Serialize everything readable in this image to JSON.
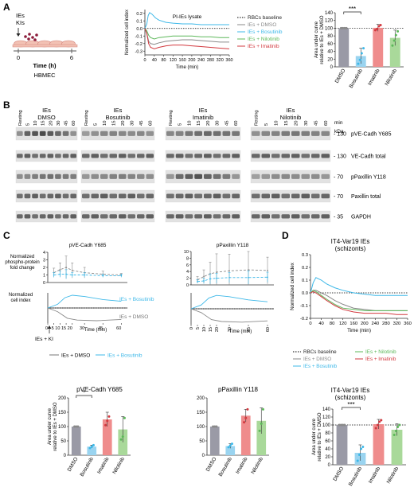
{
  "panels": {
    "A": "A",
    "B": "B",
    "C": "C",
    "D": "D"
  },
  "colors": {
    "dmso": "#8a8a8a",
    "bosutinib": "#3db8e8",
    "nilotinib": "#5db85a",
    "imatinib": "#d2393f",
    "baseline": "#000000",
    "dmso_bar": "#9a9aa6",
    "bosu_bar": "#9ad4f0",
    "imat_bar": "#ef8c8c",
    "nilo_bar": "#a9d99a",
    "cell": "#f2c1b4",
    "cell_edge": "#d5837a",
    "ie": "#8c1d3b"
  },
  "panelA": {
    "schematic": {
      "ies": "IEs",
      "kis": "KIs",
      "t0": "0",
      "t6": "6",
      "time_label": "Time (h)",
      "cell_label": "HBMEC"
    },
    "sig": "***"
  },
  "panelB": {
    "groups": [
      {
        "line1": "IEs",
        "line2": "DMSO"
      },
      {
        "line1": "IEs",
        "line2": "Bosutinib"
      },
      {
        "line1": "IEs",
        "line2": "Imatinib"
      },
      {
        "line1": "IEs",
        "line2": "Nilotinib"
      }
    ],
    "lanes": [
      "Resting",
      "5",
      "10",
      "15",
      "20",
      "30",
      "45",
      "60"
    ],
    "min_label": "min",
    "kda_label": "kDa",
    "rows": [
      {
        "kda": "130",
        "name": "pVE-Cadh Y685"
      },
      {
        "kda": "130",
        "name": "VE-Cadh total"
      },
      {
        "kda": "70",
        "name": "pPaxillin Y118"
      },
      {
        "kda": "70",
        "name": "Paxillin total"
      },
      {
        "kda": "35",
        "name": "GAPDH"
      }
    ]
  },
  "panelC": {
    "top_ylabel": [
      "Normalized",
      "phospho-protein",
      "fold change"
    ],
    "bottom_ylabel": [
      "Normalized",
      "cell index"
    ],
    "marker_label": "IEs + KI",
    "curve_bosu": "IEs + Bosutinib",
    "curve_dmso": "IEs + DMSO",
    "legend_dmso": "IEs + DMSO",
    "legend_bosu": "IEs + Bosutinib",
    "sig": "*"
  },
  "panelD": {
    "title1": "IT4-Var19 IEs",
    "title2": "(schizonts)",
    "sig": "***"
  },
  "chart_data": [
    {
      "id": "A-line",
      "type": "line",
      "title": "PI-IEs lysate",
      "xlabel": "Time (min)",
      "ylabel": "Normalized cell index",
      "xlim": [
        0,
        360
      ],
      "ylim": [
        -0.35,
        0.25
      ],
      "xticks": [
        0,
        40,
        80,
        120,
        160,
        200,
        240,
        280,
        320,
        360
      ],
      "yticks": [
        -0.3,
        -0.2,
        -0.1,
        0.0,
        0.1,
        0.2
      ],
      "ytick_labels": [
        "-0.3",
        "-0.2",
        "-0.1",
        "0.0",
        "0.1",
        "0.2"
      ],
      "baseline": 0,
      "series": [
        {
          "name": "IEs + DMSO",
          "x": [
            0,
            8,
            16,
            24,
            40,
            60,
            90,
            120,
            160,
            200,
            240,
            280,
            320,
            360
          ],
          "y": [
            0,
            -0.06,
            -0.17,
            -0.2,
            -0.21,
            -0.19,
            -0.17,
            -0.16,
            -0.15,
            -0.15,
            -0.16,
            -0.17,
            -0.18,
            -0.18
          ]
        },
        {
          "name": "IEs + Bosutinib",
          "x": [
            0,
            8,
            14,
            20,
            30,
            45,
            60,
            90,
            120,
            160,
            200,
            240,
            280,
            320,
            360
          ],
          "y": [
            0,
            0.06,
            0.17,
            0.21,
            0.19,
            0.14,
            0.11,
            0.08,
            0.07,
            0.06,
            0.06,
            0.05,
            0.05,
            0.05,
            0.05
          ]
        },
        {
          "name": "IEs + Nilotinib",
          "x": [
            0,
            8,
            16,
            24,
            40,
            60,
            90,
            120,
            160,
            200,
            240,
            280,
            320,
            360
          ],
          "y": [
            0,
            -0.03,
            -0.09,
            -0.12,
            -0.14,
            -0.12,
            -0.11,
            -0.1,
            -0.1,
            -0.1,
            -0.11,
            -0.11,
            -0.12,
            -0.12
          ]
        },
        {
          "name": "IEs + Imatinib",
          "x": [
            0,
            8,
            16,
            24,
            40,
            60,
            90,
            120,
            160,
            200,
            240,
            280,
            320,
            360
          ],
          "y": [
            0,
            -0.07,
            -0.2,
            -0.25,
            -0.27,
            -0.25,
            -0.23,
            -0.22,
            -0.22,
            -0.23,
            -0.24,
            -0.25,
            -0.26,
            -0.27
          ]
        }
      ],
      "legend": [
        "RBCs baseline",
        "IEs + DMSO",
        "IEs + Bosutinib",
        "IEs + Nilotinib",
        "IEs + Imatinib"
      ]
    },
    {
      "id": "A-bar",
      "type": "bar",
      "ylabel": [
        "Area under curve",
        "relative to IEs + DMSO"
      ],
      "categories": [
        "DMSO",
        "Bosutinib",
        "Imatinib",
        "Nilotinib"
      ],
      "values": [
        100,
        28,
        101,
        75
      ],
      "errors": [
        0,
        20,
        9,
        20
      ],
      "points": [
        [
          100,
          100,
          100,
          100
        ],
        [
          8,
          18,
          35,
          48
        ],
        [
          95,
          98,
          105,
          108
        ],
        [
          55,
          68,
          82,
          92
        ]
      ],
      "ylim": [
        0,
        140
      ],
      "yticks": [
        0,
        20,
        40,
        60,
        80,
        100,
        120,
        140
      ],
      "reference": 100
    },
    {
      "id": "C-phospho-VE",
      "type": "line",
      "title": "pVE-Cadh Y685",
      "xlim": [
        0,
        65
      ],
      "ylim": [
        0,
        4
      ],
      "yticks": [
        0,
        1,
        2,
        3,
        4
      ],
      "series": [
        {
          "name": "IEs + DMSO",
          "x": [
            5,
            10,
            15,
            20,
            30,
            45,
            60
          ],
          "y": [
            1.3,
            1.7,
            2.0,
            1.6,
            1.3,
            1.1,
            1.0
          ],
          "err": [
            0.6,
            0.9,
            1.5,
            1.0,
            0.7,
            0.4,
            0.2
          ]
        },
        {
          "name": "IEs + Bosutinib",
          "x": [
            5,
            10,
            15,
            20,
            30,
            45,
            60
          ],
          "y": [
            1.0,
            1.1,
            1.1,
            1.0,
            1.0,
            0.9,
            0.9
          ],
          "err": [
            0.3,
            0.4,
            0.6,
            0.3,
            0.3,
            0.2,
            0.2
          ]
        }
      ]
    },
    {
      "id": "C-phospho-Pax",
      "type": "line",
      "title": "pPaxillin Y118",
      "xlim": [
        0,
        65
      ],
      "ylim": [
        0,
        10
      ],
      "yticks": [
        0,
        2,
        4,
        6,
        8,
        10
      ],
      "series": [
        {
          "name": "IEs + DMSO",
          "x": [
            5,
            10,
            15,
            20,
            30,
            45,
            60
          ],
          "y": [
            1.5,
            2.5,
            3.3,
            3.8,
            4.2,
            4.5,
            4.3
          ],
          "err": [
            1.0,
            2.0,
            3.5,
            5.5,
            5.0,
            5.5,
            4.0
          ]
        },
        {
          "name": "IEs + Bosutinib",
          "x": [
            5,
            10,
            15,
            20,
            30,
            45,
            60
          ],
          "y": [
            1.0,
            1.2,
            1.8,
            2.0,
            2.2,
            2.2,
            2.3
          ],
          "err": [
            0.5,
            0.8,
            1.5,
            1.5,
            1.5,
            2.0,
            1.5
          ]
        }
      ]
    },
    {
      "id": "C-bar-VE",
      "type": "bar",
      "title": "pVE-Cadh Y685",
      "ylabel": [
        "Area under curve",
        "relative to IEs + DMSO"
      ],
      "categories": [
        "DMSO",
        "Bosutinib",
        "Imatinib",
        "Nilotinib"
      ],
      "values": [
        100,
        30,
        125,
        90
      ],
      "errors": [
        0,
        5,
        25,
        45
      ],
      "points": [
        [
          100,
          100,
          100
        ],
        [
          25,
          30,
          35
        ],
        [
          105,
          120,
          135
        ],
        [
          55,
          65,
          130
        ]
      ],
      "ylim": [
        0,
        200
      ],
      "yticks": [
        0,
        50,
        100,
        150,
        200
      ]
    },
    {
      "id": "C-bar-Pax",
      "type": "bar",
      "title": "pPaxillin Y118",
      "categories": [
        "DMSO",
        "Bosutinib",
        "Imatinib",
        "Nilotinib"
      ],
      "values": [
        100,
        32,
        138,
        120
      ],
      "errors": [
        0,
        8,
        22,
        45
      ],
      "points": [
        [
          100,
          100,
          100
        ],
        [
          28,
          34,
          40
        ],
        [
          115,
          130,
          160
        ],
        [
          85,
          110,
          160
        ]
      ],
      "ylim": [
        0,
        200
      ],
      "yticks": [
        0,
        50,
        100,
        150,
        200
      ]
    },
    {
      "id": "D-line",
      "type": "line",
      "xlabel": "Time (min)",
      "ylabel": "Normalized cell index",
      "xlim": [
        0,
        360
      ],
      "ylim": [
        -0.2,
        0.3
      ],
      "xticks": [
        0,
        40,
        80,
        120,
        160,
        200,
        240,
        280,
        320,
        360
      ],
      "yticks": [
        -0.2,
        -0.1,
        0.0,
        0.1,
        0.2,
        0.3
      ],
      "ytick_labels": [
        "-0.2",
        "-0.1",
        "0.0",
        "0.1",
        "0.2",
        "0.3"
      ],
      "baseline": 0,
      "series": [
        {
          "name": "IEs + DMSO",
          "x": [
            0,
            10,
            20,
            40,
            60,
            90,
            120,
            160,
            200,
            240,
            280,
            320,
            360
          ],
          "y": [
            0,
            0.02,
            0.02,
            0.0,
            -0.02,
            -0.06,
            -0.09,
            -0.12,
            -0.13,
            -0.14,
            -0.14,
            -0.14,
            -0.14
          ]
        },
        {
          "name": "IEs + Bosutinib",
          "x": [
            0,
            10,
            20,
            40,
            60,
            90,
            120,
            160,
            200,
            240,
            280,
            320,
            360
          ],
          "y": [
            0,
            0.08,
            0.12,
            0.1,
            0.07,
            0.04,
            0.02,
            0.0,
            -0.01,
            -0.02,
            -0.02,
            -0.02,
            -0.02
          ]
        },
        {
          "name": "IEs + Nilotinib",
          "x": [
            0,
            10,
            20,
            40,
            60,
            90,
            120,
            160,
            200,
            240,
            280,
            320,
            360
          ],
          "y": [
            0,
            0.02,
            0.01,
            -0.02,
            -0.05,
            -0.09,
            -0.12,
            -0.13,
            -0.14,
            -0.14,
            -0.14,
            -0.14,
            -0.14
          ]
        },
        {
          "name": "IEs + Imatinib",
          "x": [
            0,
            10,
            20,
            40,
            60,
            90,
            120,
            160,
            200,
            240,
            280,
            320,
            360
          ],
          "y": [
            0,
            0.01,
            0.0,
            -0.03,
            -0.06,
            -0.1,
            -0.13,
            -0.15,
            -0.16,
            -0.16,
            -0.16,
            -0.17,
            -0.17
          ]
        }
      ],
      "legend": [
        "RBCs baseline",
        "IEs + Nilotinib",
        "IEs + DMSO",
        "IEs + Imatinib",
        "IEs + Bosutinib"
      ]
    },
    {
      "id": "D-bar",
      "type": "bar",
      "ylabel": [
        "Area under curve",
        "relative to IEs + DMSO"
      ],
      "categories": [
        "DMSO",
        "Bosutinib",
        "Imatinib",
        "Nilotinib"
      ],
      "values": [
        100,
        30,
        102,
        88
      ],
      "errors": [
        0,
        20,
        12,
        15
      ],
      "points": [
        [
          100,
          100,
          100,
          100
        ],
        [
          10,
          25,
          40,
          45
        ],
        [
          92,
          100,
          108,
          112
        ],
        [
          75,
          85,
          95,
          100
        ]
      ],
      "ylim": [
        0,
        140
      ],
      "yticks": [
        0,
        20,
        40,
        60,
        80,
        100,
        120,
        140
      ],
      "reference": 100
    }
  ]
}
